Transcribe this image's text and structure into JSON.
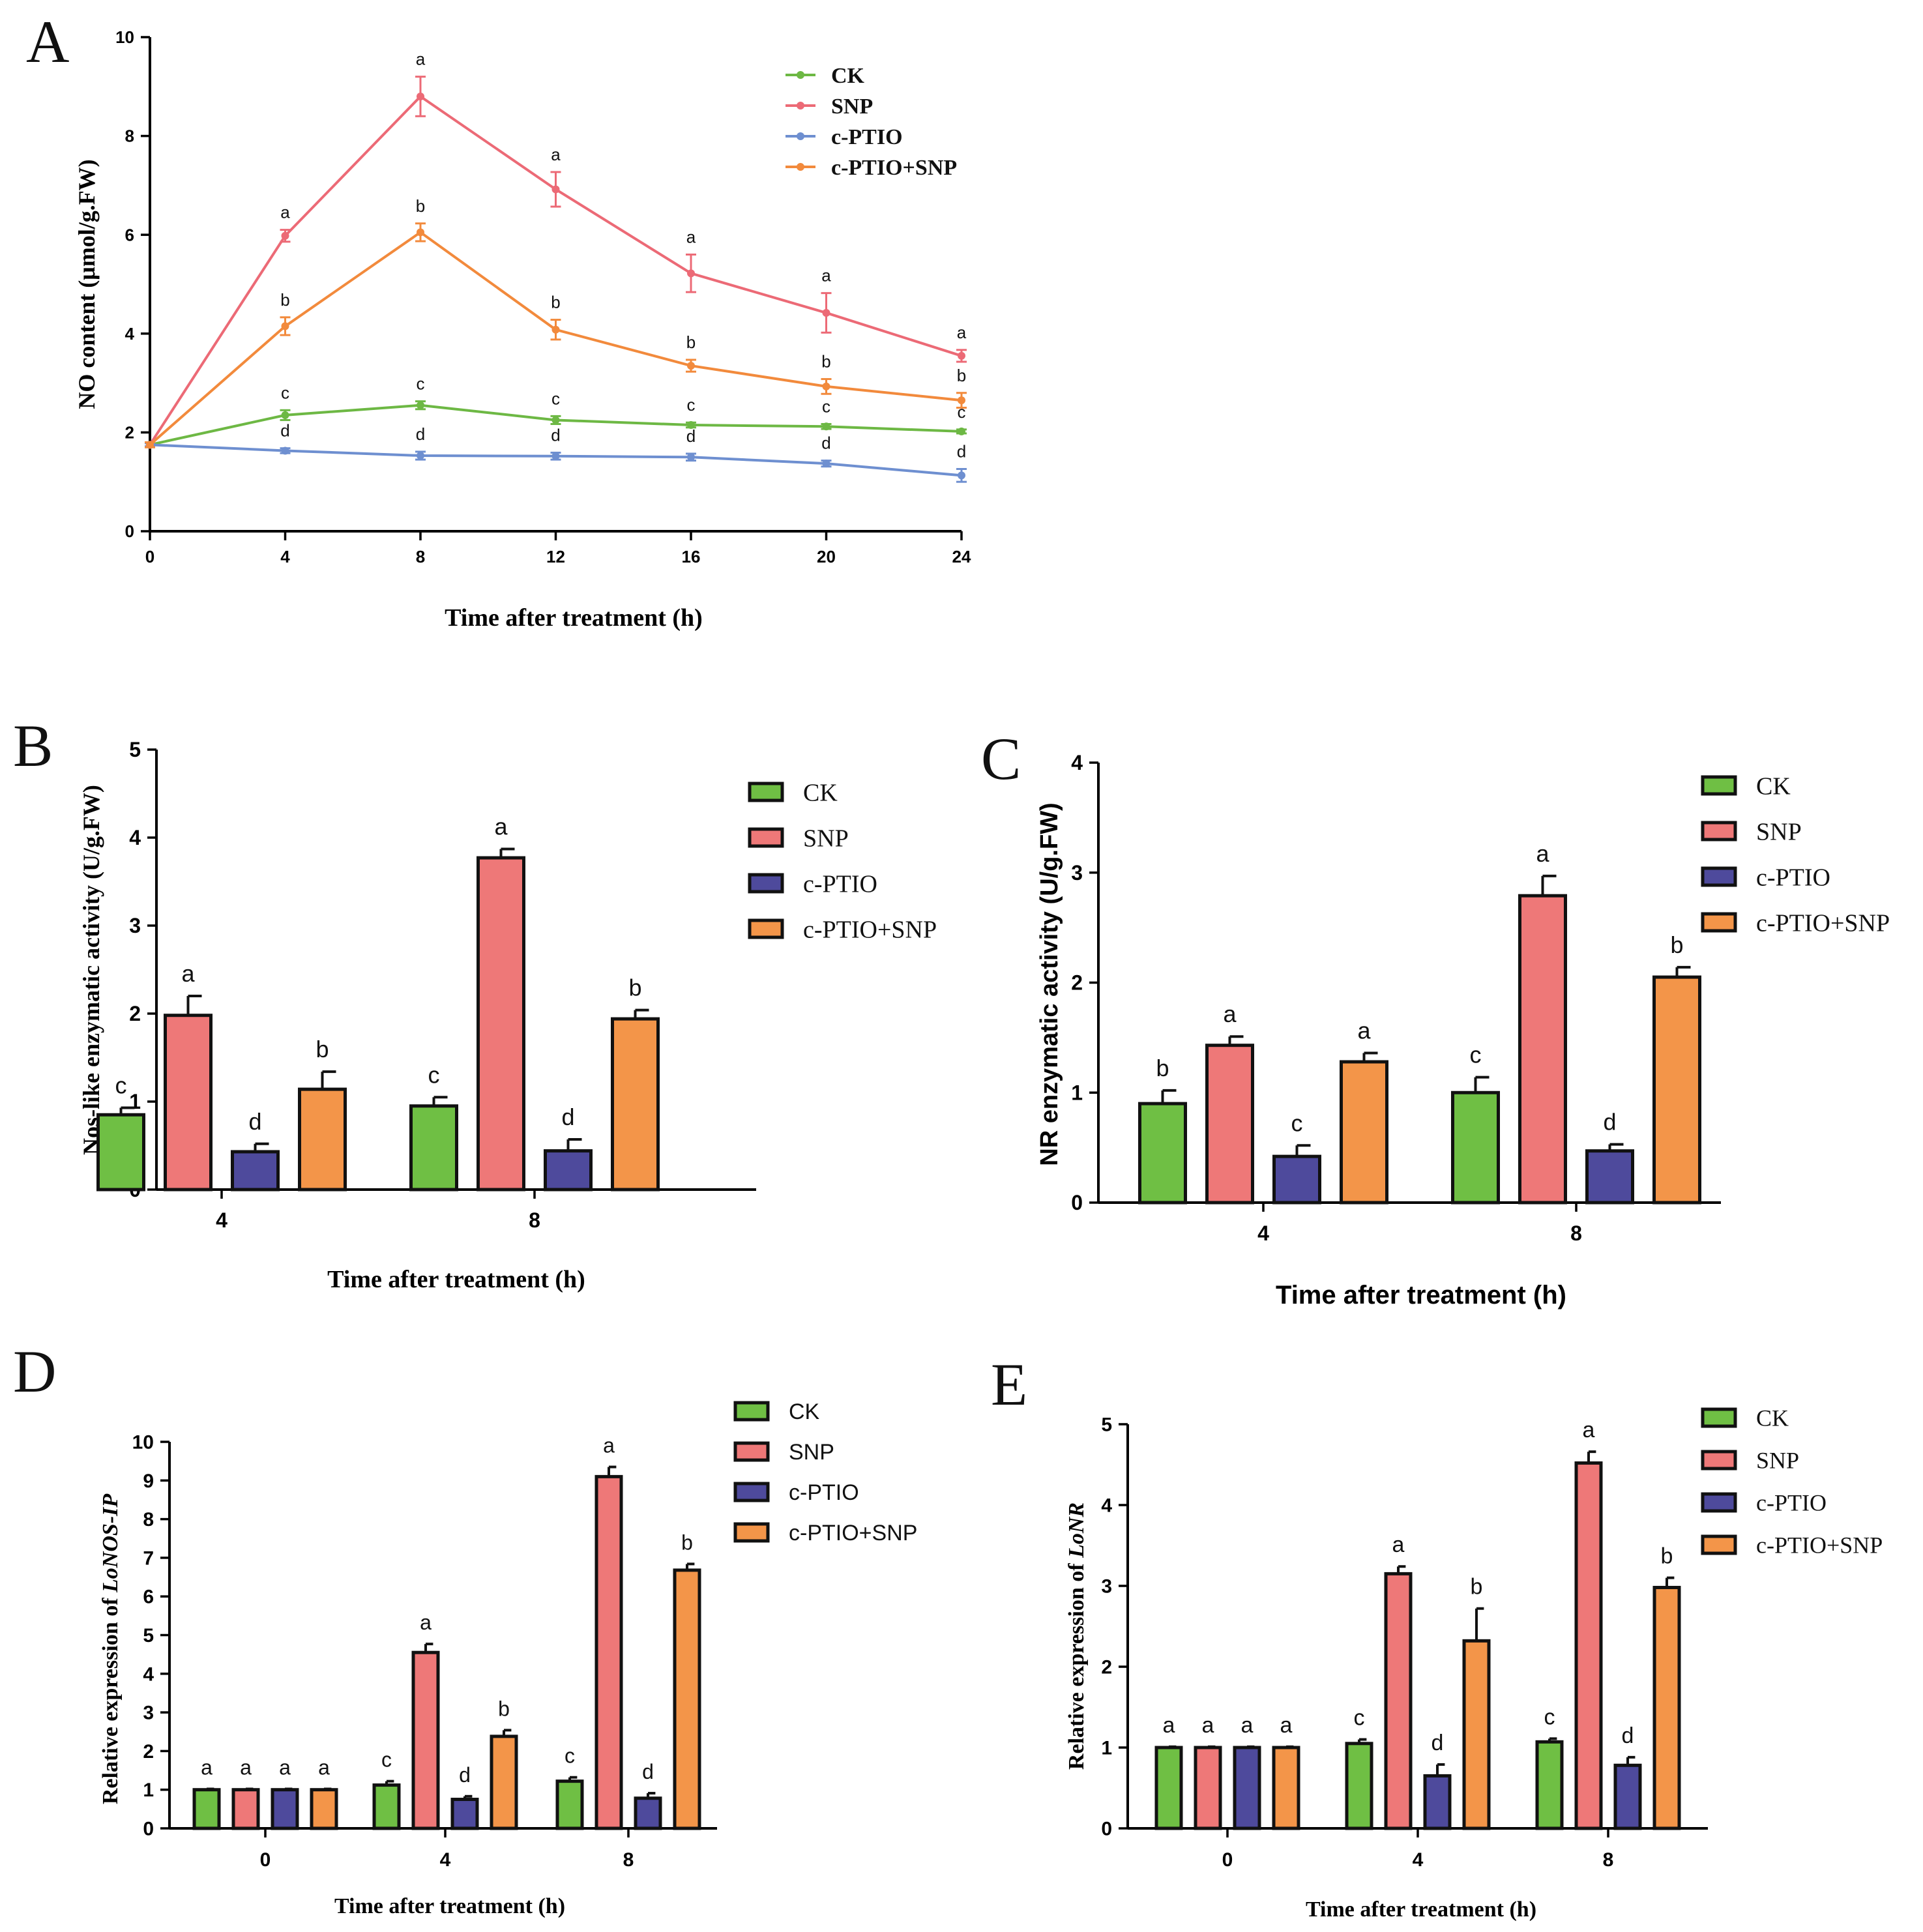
{
  "groups": [
    {
      "name": "CK",
      "color": "#6fbf44",
      "line_color": "#6db844"
    },
    {
      "name": "SNP",
      "color": "#ee7878",
      "line_color": "#ec6a76"
    },
    {
      "name": "c-PTIO",
      "color": "#4e4a9c",
      "line_color": "#6e8fd0"
    },
    {
      "name": "c-PTIO+SNP",
      "color": "#f39549",
      "line_color": "#f28a3c"
    }
  ],
  "chart_data": [
    {
      "id": "A",
      "panel_letter": "A",
      "type": "line",
      "xlabel": "Time after treatment (h)",
      "ylabel": "NO content (μmol/g.FW)",
      "x": [
        0,
        4,
        8,
        12,
        16,
        20,
        24
      ],
      "xlim": [
        0,
        24
      ],
      "ylim": [
        0,
        10
      ],
      "yticks": [
        0,
        2,
        4,
        6,
        8,
        10
      ],
      "series": [
        {
          "name": "CK",
          "values": [
            1.75,
            2.35,
            2.55,
            2.25,
            2.15,
            2.12,
            2.02
          ],
          "errors": [
            0.05,
            0.1,
            0.08,
            0.08,
            0.05,
            0.05,
            0.04
          ],
          "letters": [
            "",
            "c",
            "c",
            "c",
            "c",
            "c",
            "c"
          ]
        },
        {
          "name": "SNP",
          "values": [
            1.75,
            5.98,
            8.8,
            6.92,
            5.22,
            4.42,
            3.55
          ],
          "errors": [
            0.05,
            0.12,
            0.4,
            0.35,
            0.38,
            0.4,
            0.12
          ],
          "letters": [
            "",
            "a",
            "a",
            "a",
            "a",
            "a",
            "a"
          ]
        },
        {
          "name": "c-PTIO",
          "values": [
            1.75,
            1.63,
            1.53,
            1.52,
            1.5,
            1.37,
            1.13
          ],
          "errors": [
            0.03,
            0.05,
            0.08,
            0.07,
            0.07,
            0.06,
            0.13
          ],
          "letters": [
            "",
            "d",
            "d",
            "d",
            "d",
            "d",
            "d"
          ]
        },
        {
          "name": "c-PTIO+SNP",
          "values": [
            1.75,
            4.15,
            6.05,
            4.08,
            3.35,
            2.93,
            2.65
          ],
          "errors": [
            0.05,
            0.18,
            0.18,
            0.2,
            0.12,
            0.15,
            0.15
          ],
          "letters": [
            "",
            "b",
            "b",
            "b",
            "b",
            "b",
            "b"
          ]
        }
      ]
    },
    {
      "id": "B",
      "panel_letter": "B",
      "type": "bar",
      "xlabel": "Time after treatment (h)",
      "ylabel": "Nos-like enzymatic activity (U/g.FW)",
      "categories": [
        "4",
        "8"
      ],
      "ylim": [
        0,
        5
      ],
      "yticks": [
        0,
        1,
        2,
        3,
        4,
        5
      ],
      "series": [
        {
          "name": "CK",
          "values": [
            0.85,
            0.95
          ],
          "errors": [
            0.08,
            0.1
          ],
          "letters": [
            "c",
            "c"
          ]
        },
        {
          "name": "SNP",
          "values": [
            1.98,
            3.77
          ],
          "errors": [
            0.22,
            0.1
          ],
          "letters": [
            "a",
            "a"
          ]
        },
        {
          "name": "c-PTIO",
          "values": [
            0.43,
            0.44
          ],
          "errors": [
            0.09,
            0.13
          ],
          "letters": [
            "d",
            "d"
          ]
        },
        {
          "name": "c-PTIO+SNP",
          "values": [
            1.14,
            1.94
          ],
          "errors": [
            0.2,
            0.1
          ],
          "letters": [
            "b",
            "b"
          ]
        }
      ]
    },
    {
      "id": "C",
      "panel_letter": "C",
      "type": "bar",
      "xlabel": "Time after treatment (h)",
      "ylabel": "NR enzymatic activity (U/g.FW)",
      "categories": [
        "4",
        "8"
      ],
      "ylim": [
        0,
        4
      ],
      "yticks": [
        0,
        1,
        2,
        3,
        4
      ],
      "series": [
        {
          "name": "CK",
          "values": [
            0.9,
            1.0
          ],
          "errors": [
            0.12,
            0.14
          ],
          "letters": [
            "b",
            "c"
          ]
        },
        {
          "name": "SNP",
          "values": [
            1.43,
            2.79
          ],
          "errors": [
            0.08,
            0.18
          ],
          "letters": [
            "a",
            "a"
          ]
        },
        {
          "name": "c-PTIO",
          "values": [
            0.42,
            0.47
          ],
          "errors": [
            0.1,
            0.06
          ],
          "letters": [
            "c",
            "d"
          ]
        },
        {
          "name": "c-PTIO+SNP",
          "values": [
            1.28,
            2.05
          ],
          "errors": [
            0.08,
            0.09
          ],
          "letters": [
            "a",
            "b"
          ]
        }
      ]
    },
    {
      "id": "D",
      "panel_letter": "D",
      "type": "bar",
      "xlabel": "Time after treatment (h)",
      "ylabel_prefix": "Relative expression of ",
      "ylabel_gene": "LoNOS-IP",
      "categories": [
        "0",
        "4",
        "8"
      ],
      "ylim": [
        0,
        10
      ],
      "yticks": [
        0,
        1,
        2,
        3,
        4,
        5,
        6,
        7,
        8,
        9,
        10
      ],
      "series": [
        {
          "name": "CK",
          "values": [
            1.0,
            1.12,
            1.22
          ],
          "errors": [
            0.02,
            0.1,
            0.1
          ],
          "letters": [
            "a",
            "c",
            "c"
          ]
        },
        {
          "name": "SNP",
          "values": [
            1.0,
            4.55,
            9.1
          ],
          "errors": [
            0.02,
            0.22,
            0.25
          ],
          "letters": [
            "a",
            "a",
            "a"
          ]
        },
        {
          "name": "c-PTIO",
          "values": [
            1.0,
            0.75,
            0.78
          ],
          "errors": [
            0.02,
            0.08,
            0.13
          ],
          "letters": [
            "a",
            "d",
            "d"
          ]
        },
        {
          "name": "c-PTIO+SNP",
          "values": [
            1.0,
            2.38,
            6.68
          ],
          "errors": [
            0.02,
            0.16,
            0.16
          ],
          "letters": [
            "a",
            "b",
            "b"
          ]
        }
      ]
    },
    {
      "id": "E",
      "panel_letter": "E",
      "type": "bar",
      "xlabel": "Time after treatment (h)",
      "ylabel_prefix": "Relative expression of ",
      "ylabel_gene": "LoNR",
      "categories": [
        "0",
        "4",
        "8"
      ],
      "ylim": [
        0,
        5
      ],
      "yticks": [
        0,
        1,
        2,
        3,
        4,
        5
      ],
      "series": [
        {
          "name": "CK",
          "values": [
            1.0,
            1.05,
            1.07
          ],
          "errors": [
            0.01,
            0.05,
            0.04
          ],
          "letters": [
            "a",
            "c",
            "c"
          ]
        },
        {
          "name": "SNP",
          "values": [
            1.0,
            3.15,
            4.52
          ],
          "errors": [
            0.01,
            0.09,
            0.14
          ],
          "letters": [
            "a",
            "a",
            "a"
          ]
        },
        {
          "name": "c-PTIO",
          "values": [
            1.0,
            0.65,
            0.78
          ],
          "errors": [
            0.01,
            0.14,
            0.1
          ],
          "letters": [
            "a",
            "d",
            "d"
          ]
        },
        {
          "name": "c-PTIO+SNP",
          "values": [
            1.0,
            2.32,
            2.98
          ],
          "errors": [
            0.01,
            0.4,
            0.12
          ],
          "letters": [
            "a",
            "b",
            "b"
          ]
        }
      ]
    }
  ]
}
